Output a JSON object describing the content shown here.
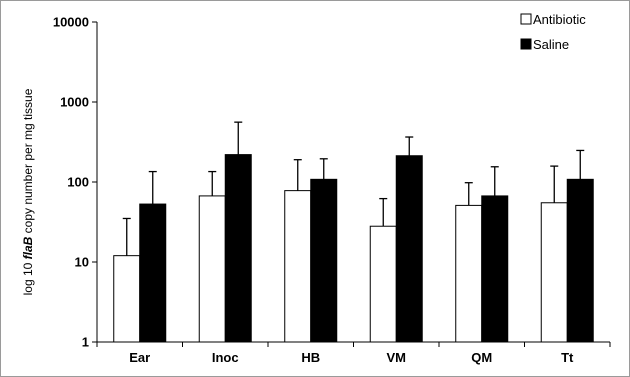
{
  "chart_data": {
    "type": "bar",
    "scale": "log",
    "ylim": [
      1,
      10000
    ],
    "yticks": [
      "1",
      "10",
      "100",
      "1000",
      "10000"
    ],
    "categories": [
      "Ear",
      "Inoc",
      "HB",
      "VM",
      "QM",
      "Tt"
    ],
    "ylabel": {
      "prefix": "log 10 ",
      "italic": "flaB",
      "suffix": " copy number per mg tissue"
    },
    "legend_position": "top-right",
    "series": [
      {
        "name": "Antibiotic",
        "color": "#ffffff",
        "values": [
          12,
          67,
          78,
          28,
          51,
          55
        ],
        "error_upper": [
          35,
          135,
          190,
          62,
          98,
          158
        ]
      },
      {
        "name": "Saline",
        "color": "#000000",
        "values": [
          53,
          220,
          108,
          213,
          67,
          108
        ],
        "error_upper": [
          135,
          560,
          195,
          365,
          155,
          248
        ]
      }
    ]
  }
}
